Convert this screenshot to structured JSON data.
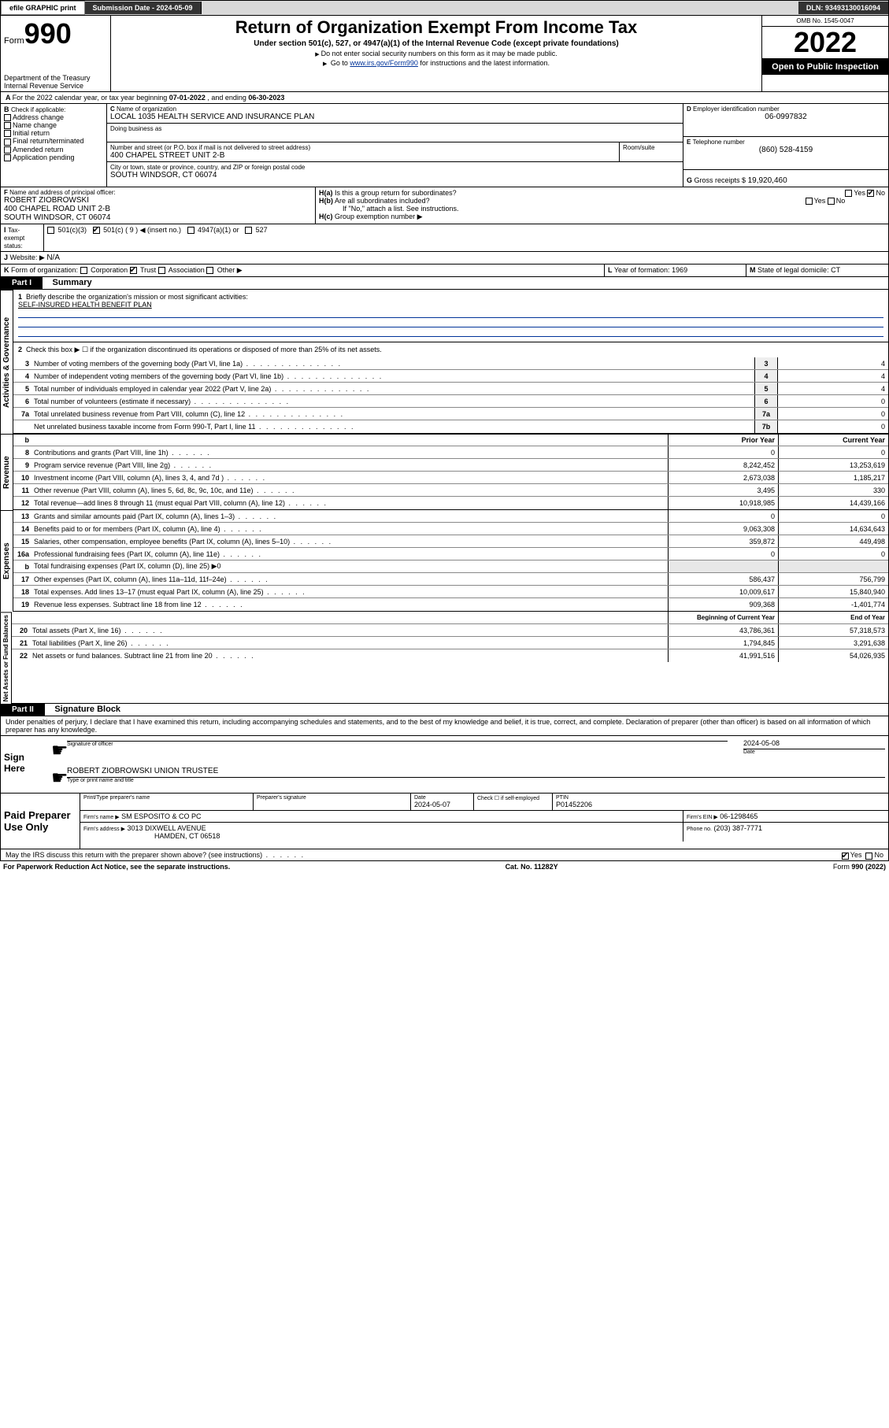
{
  "topbar": {
    "efile": "efile GRAPHIC print",
    "submission_label": "Submission Date - 2024-05-09",
    "dln_label": "DLN: 93493130016094"
  },
  "header": {
    "form_label": "Form",
    "form_num": "990",
    "dept": "Department of the Treasury",
    "irs": "Internal Revenue Service",
    "title": "Return of Organization Exempt From Income Tax",
    "subtitle": "Under section 501(c), 527, or 4947(a)(1) of the Internal Revenue Code (except private foundations)",
    "note1": "Do not enter social security numbers on this form as it may be made public.",
    "note2_pre": "Go to ",
    "note2_link": "www.irs.gov/Form990",
    "note2_post": " for instructions and the latest information.",
    "omb": "OMB No. 1545-0047",
    "year": "2022",
    "inspection": "Open to Public Inspection"
  },
  "lineA": {
    "text_pre": "For the 2022 calendar year, or tax year beginning ",
    "begin": "07-01-2022",
    "mid": " , and ending ",
    "end": "06-30-2023"
  },
  "boxB": {
    "label": "Check if applicable:",
    "opts": [
      "Address change",
      "Name change",
      "Initial return",
      "Final return/terminated",
      "Amended return",
      "Application pending"
    ]
  },
  "boxC": {
    "name_label": "Name of organization",
    "name": "LOCAL 1035 HEALTH SERVICE AND INSURANCE PLAN",
    "dba_label": "Doing business as",
    "addr_label": "Number and street (or P.O. box if mail is not delivered to street address)",
    "room_label": "Room/suite",
    "addr": "400 CHAPEL STREET UNIT 2-B",
    "city_label": "City or town, state or province, country, and ZIP or foreign postal code",
    "city": "SOUTH WINDSOR, CT  06074"
  },
  "boxD": {
    "label": "Employer identification number",
    "val": "06-0997832"
  },
  "boxE": {
    "label": "Telephone number",
    "val": "(860) 528-4159"
  },
  "boxG": {
    "label": "Gross receipts $",
    "val": "19,920,460"
  },
  "boxF": {
    "label": "Name and address of principal officer:",
    "name": "ROBERT ZIOBROWSKI",
    "addr1": "400 CHAPEL ROAD UNIT 2-B",
    "addr2": "SOUTH WINDSOR, CT  06074"
  },
  "boxH": {
    "ha": "Is this a group return for subordinates?",
    "hb": "Are all subordinates included?",
    "hnote": "If \"No,\" attach a list. See instructions.",
    "hc": "Group exemption number ▶",
    "yes": "Yes",
    "no": "No"
  },
  "boxI": {
    "label": "Tax-exempt status:",
    "o1": "501(c)(3)",
    "o2": "501(c) ( 9 ) ◀ (insert no.)",
    "o3": "4947(a)(1) or",
    "o4": "527"
  },
  "boxJ": {
    "label": "Website: ▶",
    "val": "N/A"
  },
  "boxK": {
    "label": "Form of organization:",
    "opts": [
      "Corporation",
      "Trust",
      "Association",
      "Other ▶"
    ]
  },
  "boxL": {
    "label": "Year of formation:",
    "val": "1969"
  },
  "boxM": {
    "label": "State of legal domicile:",
    "val": "CT"
  },
  "part1": {
    "hdr": "Part I",
    "title": "Summary",
    "l1_label": "Briefly describe the organization's mission or most significant activities:",
    "l1_val": "SELF-INSURED HEALTH BENEFIT PLAN",
    "l2": "Check this box ▶ ☐  if the organization discontinued its operations or disposed of more than 25% of its net assets.",
    "sections": {
      "gov": "Activities & Governance",
      "rev": "Revenue",
      "exp": "Expenses",
      "net": "Net Assets or Fund Balances"
    },
    "rows_single": [
      {
        "n": "3",
        "t": "Number of voting members of the governing body (Part VI, line 1a)",
        "box": "3",
        "v": "4"
      },
      {
        "n": "4",
        "t": "Number of independent voting members of the governing body (Part VI, line 1b)",
        "box": "4",
        "v": "4"
      },
      {
        "n": "5",
        "t": "Total number of individuals employed in calendar year 2022 (Part V, line 2a)",
        "box": "5",
        "v": "4"
      },
      {
        "n": "6",
        "t": "Total number of volunteers (estimate if necessary)",
        "box": "6",
        "v": "0"
      },
      {
        "n": "7a",
        "t": "Total unrelated business revenue from Part VIII, column (C), line 12",
        "box": "7a",
        "v": "0"
      },
      {
        "n": "",
        "t": "Net unrelated business taxable income from Form 990-T, Part I, line 11",
        "box": "7b",
        "v": "0"
      }
    ],
    "col_hdrs": {
      "b": "b",
      "prior": "Prior Year",
      "current": "Current Year",
      "boy": "Beginning of Current Year",
      "eoy": "End of Year"
    },
    "rev_rows": [
      {
        "n": "8",
        "t": "Contributions and grants (Part VIII, line 1h)",
        "p": "0",
        "c": "0"
      },
      {
        "n": "9",
        "t": "Program service revenue (Part VIII, line 2g)",
        "p": "8,242,452",
        "c": "13,253,619"
      },
      {
        "n": "10",
        "t": "Investment income (Part VIII, column (A), lines 3, 4, and 7d )",
        "p": "2,673,038",
        "c": "1,185,217"
      },
      {
        "n": "11",
        "t": "Other revenue (Part VIII, column (A), lines 5, 6d, 8c, 9c, 10c, and 11e)",
        "p": "3,495",
        "c": "330"
      },
      {
        "n": "12",
        "t": "Total revenue—add lines 8 through 11 (must equal Part VIII, column (A), line 12)",
        "p": "10,918,985",
        "c": "14,439,166"
      }
    ],
    "exp_rows": [
      {
        "n": "13",
        "t": "Grants and similar amounts paid (Part IX, column (A), lines 1–3)",
        "p": "0",
        "c": "0"
      },
      {
        "n": "14",
        "t": "Benefits paid to or for members (Part IX, column (A), line 4)",
        "p": "9,063,308",
        "c": "14,634,643"
      },
      {
        "n": "15",
        "t": "Salaries, other compensation, employee benefits (Part IX, column (A), lines 5–10)",
        "p": "359,872",
        "c": "449,498"
      },
      {
        "n": "16a",
        "t": "Professional fundraising fees (Part IX, column (A), line 11e)",
        "p": "0",
        "c": "0"
      },
      {
        "n": "b",
        "t": "Total fundraising expenses (Part IX, column (D), line 25) ▶0",
        "p": "",
        "c": "",
        "shaded": true
      },
      {
        "n": "17",
        "t": "Other expenses (Part IX, column (A), lines 11a–11d, 11f–24e)",
        "p": "586,437",
        "c": "756,799"
      },
      {
        "n": "18",
        "t": "Total expenses. Add lines 13–17 (must equal Part IX, column (A), line 25)",
        "p": "10,009,617",
        "c": "15,840,940"
      },
      {
        "n": "19",
        "t": "Revenue less expenses. Subtract line 18 from line 12",
        "p": "909,368",
        "c": "-1,401,774"
      }
    ],
    "net_rows": [
      {
        "n": "20",
        "t": "Total assets (Part X, line 16)",
        "p": "43,786,361",
        "c": "57,318,573"
      },
      {
        "n": "21",
        "t": "Total liabilities (Part X, line 26)",
        "p": "1,794,845",
        "c": "3,291,638"
      },
      {
        "n": "22",
        "t": "Net assets or fund balances. Subtract line 21 from line 20",
        "p": "41,991,516",
        "c": "54,026,935"
      }
    ]
  },
  "part2": {
    "hdr": "Part II",
    "title": "Signature Block",
    "penalty": "Under penalties of perjury, I declare that I have examined this return, including accompanying schedules and statements, and to the best of my knowledge and belief, it is true, correct, and complete. Declaration of preparer (other than officer) is based on all information of which preparer has any knowledge.",
    "sign_here": "Sign Here",
    "sig_officer": "Signature of officer",
    "sig_date": "Date",
    "sig_date_val": "2024-05-08",
    "officer_name": "ROBERT ZIOBROWSKI UNION TRUSTEE",
    "type_name": "Type or print name and title",
    "paid": "Paid Preparer Use Only",
    "prep_name_label": "Print/Type preparer's name",
    "prep_sig_label": "Preparer's signature",
    "prep_date_label": "Date",
    "prep_date": "2024-05-07",
    "check_if": "Check ☐ if self-employed",
    "ptin_label": "PTIN",
    "ptin": "P01452206",
    "firm_name_label": "Firm's name    ▶",
    "firm_name": "SM ESPOSITO & CO PC",
    "firm_ein_label": "Firm's EIN ▶",
    "firm_ein": "06-1298465",
    "firm_addr_label": "Firm's address ▶",
    "firm_addr1": "3013 DIXWELL AVENUE",
    "firm_addr2": "HAMDEN, CT  06518",
    "phone_label": "Phone no.",
    "phone": "(203) 387-7771",
    "discuss": "May the IRS discuss this return with the preparer shown above? (see instructions)",
    "yes": "Yes",
    "no": "No"
  },
  "footer": {
    "pra": "For Paperwork Reduction Act Notice, see the separate instructions.",
    "cat": "Cat. No. 11282Y",
    "form": "Form 990 (2022)"
  }
}
